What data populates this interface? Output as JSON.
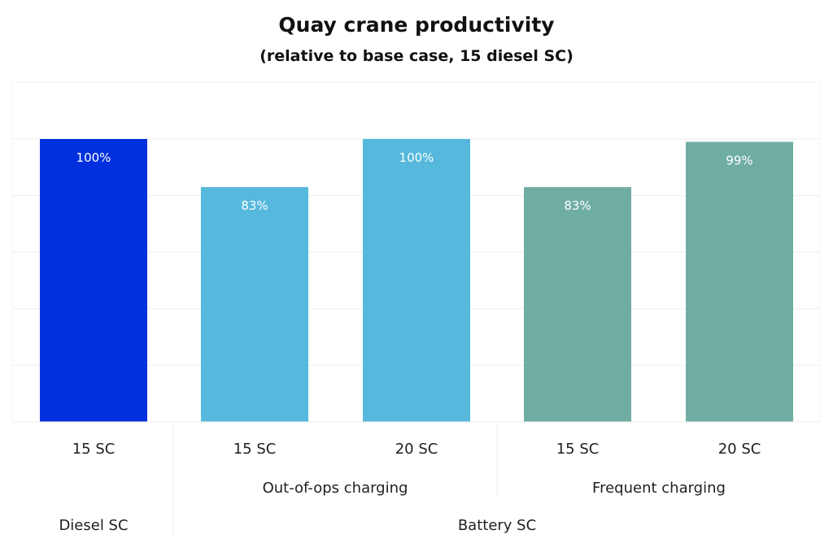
{
  "chart_data": {
    "type": "bar",
    "title": "Quay crane productivity",
    "subtitle": "(relative to base case, 15 diesel SC)",
    "xlabel": "",
    "ylabel": "",
    "ylim": [
      0,
      100
    ],
    "grid": true,
    "categories": [
      "15 SC",
      "15 SC",
      "20 SC",
      "15 SC",
      "20 SC"
    ],
    "values": [
      100,
      83,
      100,
      83,
      99
    ],
    "data_labels": [
      "100%",
      "83%",
      "100%",
      "83%",
      "99%"
    ],
    "bar_colors": [
      "#0030DD",
      "#55B8DC",
      "#55B8DC",
      "#6FADA3",
      "#6FADA3"
    ],
    "subgroups": [
      {
        "label": "",
        "categories": [
          0
        ]
      },
      {
        "label": "Out-of-ops charging",
        "categories": [
          1,
          2
        ]
      },
      {
        "label": "Frequent charging",
        "categories": [
          3,
          4
        ]
      }
    ],
    "groups": [
      {
        "label": "Diesel SC",
        "categories": [
          0
        ]
      },
      {
        "label": "Battery SC",
        "categories": [
          1,
          2,
          3,
          4
        ]
      }
    ]
  }
}
